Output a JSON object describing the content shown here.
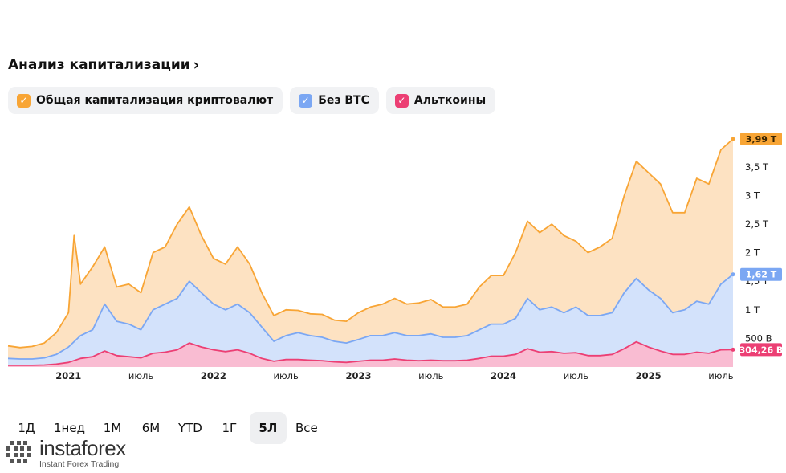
{
  "title": "Анализ капитализации",
  "title_chevron": "›",
  "legend": [
    {
      "label": "Общая капитализация криптовалют",
      "color": "#f8a535",
      "check": "✓"
    },
    {
      "label": "Без BTC",
      "color": "#7ba7f3",
      "check": "✓"
    },
    {
      "label": "Альткоины",
      "color": "#ec3f74",
      "check": "✓"
    }
  ],
  "periods": [
    {
      "label": "1Д",
      "active": false
    },
    {
      "label": "1нед",
      "active": false
    },
    {
      "label": "1М",
      "active": false
    },
    {
      "label": "6М",
      "active": false
    },
    {
      "label": "YTD",
      "active": false
    },
    {
      "label": "1Г",
      "active": false
    },
    {
      "label": "5Л",
      "active": true
    },
    {
      "label": "Все",
      "active": false
    }
  ],
  "watermark": {
    "brand": "instaforex",
    "sub": "Instant Forex Trading"
  },
  "chart_data": {
    "type": "area",
    "x_unit": "month",
    "x_start": "2020-08",
    "x_end": "2025-08",
    "x_ticks": [
      {
        "label": "2021",
        "t": "2021-01",
        "bold": true
      },
      {
        "label": "июль",
        "t": "2021-07",
        "bold": false
      },
      {
        "label": "2022",
        "t": "2022-01",
        "bold": true
      },
      {
        "label": "июль",
        "t": "2022-07",
        "bold": false
      },
      {
        "label": "2023",
        "t": "2023-01",
        "bold": true
      },
      {
        "label": "июль",
        "t": "2023-07",
        "bold": false
      },
      {
        "label": "2024",
        "t": "2024-01",
        "bold": true
      },
      {
        "label": "июль",
        "t": "2024-07",
        "bold": false
      },
      {
        "label": "2025",
        "t": "2025-01",
        "bold": true
      },
      {
        "label": "июль",
        "t": "2025-07",
        "bold": false
      }
    ],
    "y_ticks": [
      {
        "label": "500 B",
        "v": 0.5
      },
      {
        "label": "1 T",
        "v": 1.0
      },
      {
        "label": "1,5 T",
        "v": 1.5
      },
      {
        "label": "2 T",
        "v": 2.0
      },
      {
        "label": "2,5 T",
        "v": 2.5
      },
      {
        "label": "3 T",
        "v": 3.0
      },
      {
        "label": "3,5 T",
        "v": 3.5
      }
    ],
    "y_unit": "trillion USD",
    "ylim": [
      0,
      3.99
    ],
    "last_value_tags": [
      {
        "series": "Общая капитализация криптовалют",
        "label": "3,99 T",
        "v": 3.99
      },
      {
        "series": "Без BTC",
        "label": "1,62 T",
        "v": 1.62
      },
      {
        "series": "Альткоины",
        "label": "304,26 B",
        "v": 0.304
      }
    ],
    "series": [
      {
        "name": "Общая капитализация криптовалют",
        "color": "#f8a535",
        "fill": "#fde2c2",
        "points": [
          [
            "2020-08",
            0.37
          ],
          [
            "2020-09",
            0.34
          ],
          [
            "2020-10",
            0.36
          ],
          [
            "2020-11",
            0.42
          ],
          [
            "2020-12",
            0.6
          ],
          [
            "2021-01",
            0.95
          ],
          [
            "2021-02",
            1.45
          ],
          [
            "2021-03",
            1.75
          ],
          [
            "2021-04",
            2.1
          ],
          [
            "2021-05",
            1.4
          ],
          [
            "2021-06",
            1.45
          ],
          [
            "2021-07",
            1.3
          ],
          [
            "2021-08",
            2.0
          ],
          [
            "2021-09",
            2.1
          ],
          [
            "2021-10",
            2.5
          ],
          [
            "2021-11",
            2.8
          ],
          [
            "2021-12",
            2.3
          ],
          [
            "2021-01-15",
            2.3
          ],
          [
            "2022-01",
            1.9
          ],
          [
            "2022-02",
            1.8
          ],
          [
            "2022-03",
            2.1
          ],
          [
            "2022-04",
            1.8
          ],
          [
            "2022-05",
            1.3
          ],
          [
            "2022-06",
            0.9
          ],
          [
            "2022-07",
            1.0
          ],
          [
            "2022-08",
            0.99
          ],
          [
            "2022-09",
            0.93
          ],
          [
            "2022-10",
            0.92
          ],
          [
            "2022-11",
            0.82
          ],
          [
            "2022-12",
            0.8
          ],
          [
            "2023-01",
            0.95
          ],
          [
            "2023-02",
            1.05
          ],
          [
            "2023-03",
            1.1
          ],
          [
            "2023-04",
            1.2
          ],
          [
            "2023-05",
            1.1
          ],
          [
            "2023-06",
            1.12
          ],
          [
            "2023-07",
            1.18
          ],
          [
            "2023-08",
            1.05
          ],
          [
            "2023-09",
            1.05
          ],
          [
            "2023-10",
            1.1
          ],
          [
            "2023-11",
            1.4
          ],
          [
            "2023-12",
            1.6
          ],
          [
            "2024-01",
            1.6
          ],
          [
            "2024-02",
            2.0
          ],
          [
            "2024-03",
            2.55
          ],
          [
            "2024-04",
            2.35
          ],
          [
            "2024-05",
            2.5
          ],
          [
            "2024-06",
            2.3
          ],
          [
            "2024-07",
            2.2
          ],
          [
            "2024-08",
            2.0
          ],
          [
            "2024-09",
            2.1
          ],
          [
            "2024-10",
            2.25
          ],
          [
            "2024-11",
            3.0
          ],
          [
            "2024-12",
            3.6
          ],
          [
            "2025-01",
            3.4
          ],
          [
            "2025-02",
            3.2
          ],
          [
            "2025-03",
            2.7
          ],
          [
            "2025-04",
            2.7
          ],
          [
            "2025-05",
            3.3
          ],
          [
            "2025-06",
            3.2
          ],
          [
            "2025-07",
            3.8
          ],
          [
            "2025-08",
            3.99
          ]
        ]
      },
      {
        "name": "Без BTC",
        "color": "#7ba7f3",
        "fill": "#d3e2fb",
        "points": [
          [
            "2020-08",
            0.15
          ],
          [
            "2020-09",
            0.14
          ],
          [
            "2020-10",
            0.14
          ],
          [
            "2020-11",
            0.16
          ],
          [
            "2020-12",
            0.22
          ],
          [
            "2021-01",
            0.35
          ],
          [
            "2021-02",
            0.55
          ],
          [
            "2021-03",
            0.65
          ],
          [
            "2021-04",
            1.1
          ],
          [
            "2021-05",
            0.8
          ],
          [
            "2021-06",
            0.75
          ],
          [
            "2021-07",
            0.65
          ],
          [
            "2021-08",
            1.0
          ],
          [
            "2021-09",
            1.1
          ],
          [
            "2021-10",
            1.2
          ],
          [
            "2021-11",
            1.5
          ],
          [
            "2021-12",
            1.3
          ],
          [
            "2022-01",
            1.1
          ],
          [
            "2022-02",
            1.0
          ],
          [
            "2022-03",
            1.1
          ],
          [
            "2022-04",
            0.95
          ],
          [
            "2022-05",
            0.7
          ],
          [
            "2022-06",
            0.45
          ],
          [
            "2022-07",
            0.55
          ],
          [
            "2022-08",
            0.6
          ],
          [
            "2022-09",
            0.55
          ],
          [
            "2022-10",
            0.52
          ],
          [
            "2022-11",
            0.45
          ],
          [
            "2022-12",
            0.42
          ],
          [
            "2023-01",
            0.48
          ],
          [
            "2023-02",
            0.55
          ],
          [
            "2023-03",
            0.55
          ],
          [
            "2023-04",
            0.6
          ],
          [
            "2023-05",
            0.55
          ],
          [
            "2023-06",
            0.55
          ],
          [
            "2023-07",
            0.58
          ],
          [
            "2023-08",
            0.52
          ],
          [
            "2023-09",
            0.52
          ],
          [
            "2023-10",
            0.55
          ],
          [
            "2023-11",
            0.65
          ],
          [
            "2023-12",
            0.75
          ],
          [
            "2024-01",
            0.75
          ],
          [
            "2024-02",
            0.85
          ],
          [
            "2024-03",
            1.2
          ],
          [
            "2024-04",
            1.0
          ],
          [
            "2024-05",
            1.05
          ],
          [
            "2024-06",
            0.95
          ],
          [
            "2024-07",
            1.05
          ],
          [
            "2024-08",
            0.9
          ],
          [
            "2024-09",
            0.9
          ],
          [
            "2024-10",
            0.95
          ],
          [
            "2024-11",
            1.3
          ],
          [
            "2024-12",
            1.55
          ],
          [
            "2025-01",
            1.35
          ],
          [
            "2025-02",
            1.2
          ],
          [
            "2025-03",
            0.95
          ],
          [
            "2025-04",
            1.0
          ],
          [
            "2025-05",
            1.15
          ],
          [
            "2025-06",
            1.1
          ],
          [
            "2025-07",
            1.45
          ],
          [
            "2025-08",
            1.62
          ]
        ]
      },
      {
        "name": "Альткоины",
        "color": "#ec3f74",
        "fill": "#f9bcd2",
        "points": [
          [
            "2020-08",
            0.03
          ],
          [
            "2020-09",
            0.03
          ],
          [
            "2020-10",
            0.03
          ],
          [
            "2020-11",
            0.035
          ],
          [
            "2020-12",
            0.05
          ],
          [
            "2021-01",
            0.08
          ],
          [
            "2021-02",
            0.15
          ],
          [
            "2021-03",
            0.18
          ],
          [
            "2021-04",
            0.28
          ],
          [
            "2021-05",
            0.2
          ],
          [
            "2021-06",
            0.18
          ],
          [
            "2021-07",
            0.16
          ],
          [
            "2021-08",
            0.24
          ],
          [
            "2021-09",
            0.26
          ],
          [
            "2021-10",
            0.3
          ],
          [
            "2021-11",
            0.42
          ],
          [
            "2021-12",
            0.35
          ],
          [
            "2022-01",
            0.3
          ],
          [
            "2022-02",
            0.27
          ],
          [
            "2022-03",
            0.3
          ],
          [
            "2022-04",
            0.24
          ],
          [
            "2022-05",
            0.15
          ],
          [
            "2022-06",
            0.1
          ],
          [
            "2022-07",
            0.13
          ],
          [
            "2022-08",
            0.13
          ],
          [
            "2022-09",
            0.12
          ],
          [
            "2022-10",
            0.11
          ],
          [
            "2022-11",
            0.09
          ],
          [
            "2022-12",
            0.08
          ],
          [
            "2023-01",
            0.1
          ],
          [
            "2023-02",
            0.12
          ],
          [
            "2023-03",
            0.12
          ],
          [
            "2023-04",
            0.14
          ],
          [
            "2023-05",
            0.12
          ],
          [
            "2023-06",
            0.11
          ],
          [
            "2023-07",
            0.12
          ],
          [
            "2023-08",
            0.11
          ],
          [
            "2023-09",
            0.11
          ],
          [
            "2023-10",
            0.12
          ],
          [
            "2023-11",
            0.15
          ],
          [
            "2023-12",
            0.19
          ],
          [
            "2024-01",
            0.19
          ],
          [
            "2024-02",
            0.22
          ],
          [
            "2024-03",
            0.32
          ],
          [
            "2024-04",
            0.26
          ],
          [
            "2024-05",
            0.27
          ],
          [
            "2024-06",
            0.24
          ],
          [
            "2024-07",
            0.25
          ],
          [
            "2024-08",
            0.2
          ],
          [
            "2024-09",
            0.2
          ],
          [
            "2024-10",
            0.22
          ],
          [
            "2024-11",
            0.32
          ],
          [
            "2024-12",
            0.44
          ],
          [
            "2025-01",
            0.35
          ],
          [
            "2025-02",
            0.28
          ],
          [
            "2025-03",
            0.22
          ],
          [
            "2025-04",
            0.22
          ],
          [
            "2025-05",
            0.26
          ],
          [
            "2025-06",
            0.24
          ],
          [
            "2025-07",
            0.3
          ],
          [
            "2025-08",
            0.304
          ]
        ]
      }
    ]
  }
}
